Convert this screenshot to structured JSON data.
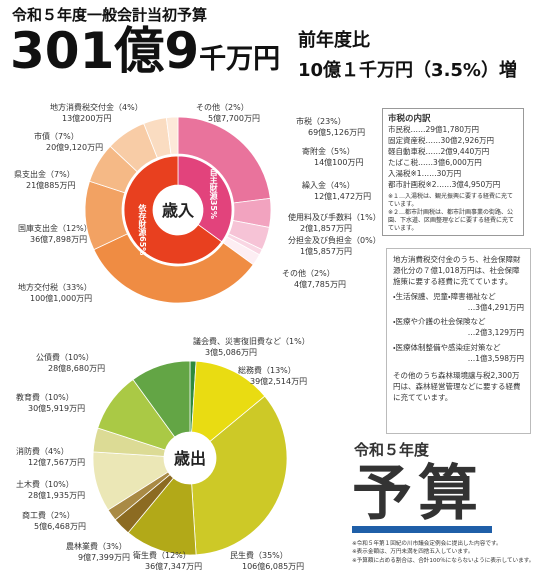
{
  "header": {
    "title": "令和５年度一般会計当初予算",
    "total_main": "301億9",
    "total_unit": "千万円",
    "compare_label": "前年度比",
    "compare_value": "10億１千万円（3.5%）増"
  },
  "chart_data": [
    {
      "type": "pie",
      "center_label": "歳入",
      "categories": [
        "市税",
        "寄附金",
        "繰入金",
        "使用料及び手数料",
        "分担金及び負担金",
        "その他",
        "地方交付税",
        "国庫支出金",
        "県支出金",
        "市債",
        "地方消費税交付金",
        "その他"
      ],
      "values": [
        23,
        5,
        4,
        1,
        0,
        2,
        33,
        12,
        7,
        7,
        4,
        2
      ],
      "value_labels": [
        "（23%）",
        "（5%）",
        "（4%）",
        "（1%）",
        "（0%）",
        "（2%）",
        "（33%）",
        "（12%）",
        "（7%）",
        "（7%）",
        "（4%）",
        "（2%）"
      ],
      "amounts": [
        "69億5,126万円",
        "14億100万円",
        "12億1,472万円",
        "2億1,857万円",
        "1億5,857万円",
        "4億7,785万円",
        "100億1,000万円",
        "36億7,898万円",
        "21億885万円",
        "20億9,120万円",
        "13億200万円",
        "5億7,700万円"
      ],
      "colors": [
        "#e9739c",
        "#f2a3bf",
        "#f6c3d6",
        "#f9d6e3",
        "#fbe3ec",
        "#fdeef3",
        "#ef8c43",
        "#f2a263",
        "#f5b986",
        "#f8cca6",
        "#fadcc1",
        "#fde9d9"
      ],
      "inner": {
        "categories": [
          "自主財源",
          "依存財源"
        ],
        "values": [
          35,
          65
        ],
        "value_labels": [
          "35%",
          "65%"
        ],
        "colors": [
          "#e2437c",
          "#e8401f"
        ]
      }
    },
    {
      "type": "pie",
      "center_label": "歳出",
      "categories": [
        "議会費、災害復旧費など",
        "総務費",
        "民生費",
        "衛生費",
        "農林業費",
        "商工費",
        "土木費",
        "消防費",
        "教育費",
        "公債費"
      ],
      "values": [
        1,
        13,
        35,
        12,
        3,
        2,
        10,
        4,
        10,
        10
      ],
      "value_labels": [
        "（1%）",
        "（13%）",
        "（35%）",
        "（12%）",
        "（3%）",
        "（2%）",
        "（10%）",
        "（4%）",
        "（10%）",
        "（10%）"
      ],
      "amounts": [
        "3億5,086万円",
        "39億2,514万円",
        "106億6,085万円",
        "36億7,347万円",
        "9億7,399万円",
        "5億6,468万円",
        "28億1,935万円",
        "12億7,567万円",
        "30億5,919万円",
        "28億8,680万円"
      ],
      "colors": [
        "#2f8a3c",
        "#e9dc12",
        "#cdc927",
        "#b2a918",
        "#8c6b22",
        "#a98a45",
        "#ebe7b6",
        "#dcdb95",
        "#aac945",
        "#63a545"
      ]
    }
  ],
  "city_tax": {
    "title": "市税の内訳",
    "rows": [
      [
        "市民税",
        "……29億1,780万円"
      ],
      [
        "固定資産税",
        "……30億2,926万円"
      ],
      [
        "軽自動車税",
        "……2億9,440万円"
      ],
      [
        "たばこ税",
        "……3億6,000万円"
      ],
      [
        "入湯税※1",
        "……30万円"
      ],
      [
        "都市計画税※2",
        "……3億4,950万円"
      ]
    ],
    "notes": [
      "※１…入湯税は、観光振興に要する経費に充てています。",
      "※２…都市計画税は、都市計画事業の街路、公園、下水道、区画整理などに要する経費に充てています。"
    ]
  },
  "info_box": {
    "text": "地方消費税交付金のうち、社会保障財源化分の７億1,018万円は、社会保障施策に要する経費に充てています。",
    "items": [
      [
        "・生活保護、児童・障害福祉など",
        "…3億4,291万円"
      ],
      [
        "・医療や介護の社会保険など",
        "…2億3,129万円"
      ],
      [
        "・医療体制整備や感染症対策など",
        "…1億3,598万円"
      ]
    ],
    "footer": "その他のうち森林環境譲与税2,300万円は、森林経営管理などに要する経費に充てています。"
  },
  "logo": {
    "year": "令和５年度",
    "word": "予算"
  },
  "footnotes": [
    "※令和５年第１回紀の川市議会定例会に提出した内容です。",
    "※表示金額は、万円未満を四捨五入しています。",
    "※予算額に占める割合は、合計100％にならないように表示しています。"
  ]
}
